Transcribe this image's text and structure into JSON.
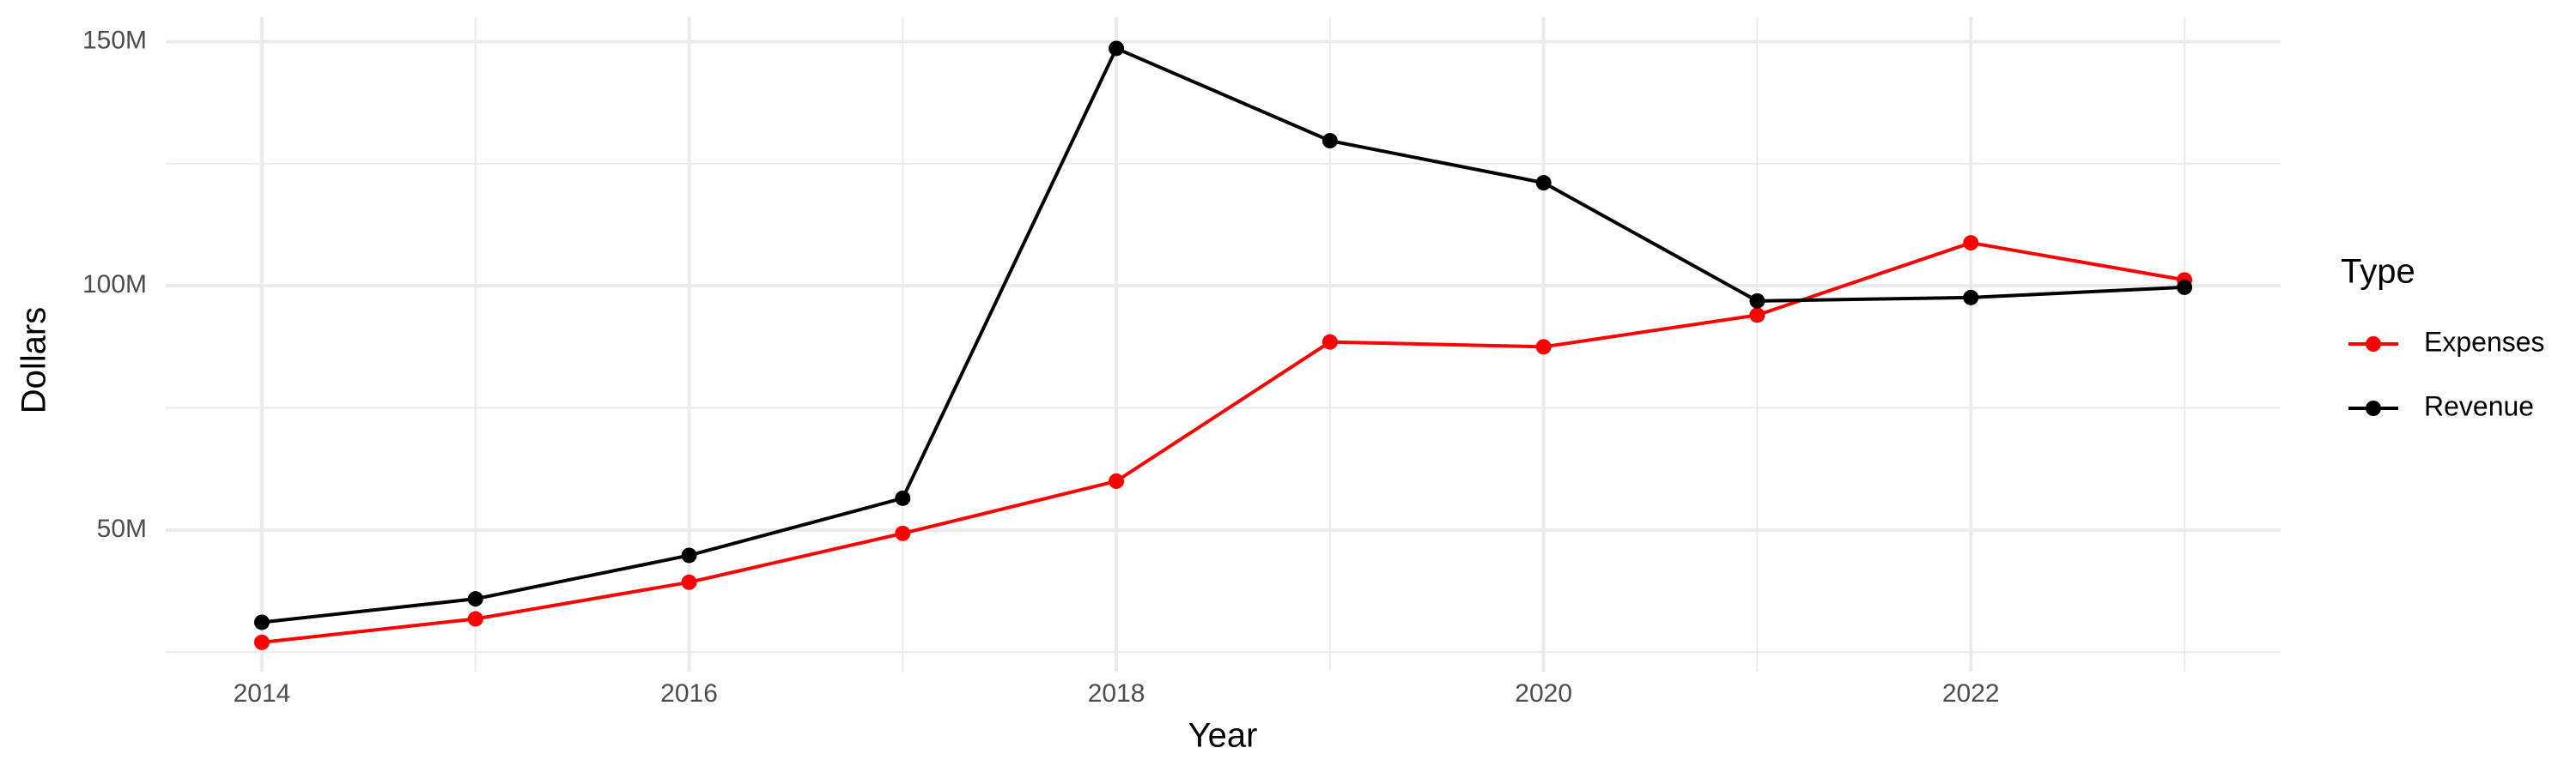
{
  "chart_data": {
    "type": "line",
    "x_label": "Year",
    "y_label": "Dollars",
    "legend_title": "Type",
    "x": [
      2014,
      2015,
      2016,
      2017,
      2018,
      2019,
      2020,
      2021,
      2022,
      2023
    ],
    "series": [
      {
        "name": "Expenses",
        "color": "#ff0000",
        "values": [
          27000000,
          31800000,
          39300000,
          49300000,
          60000000,
          88500000,
          87500000,
          94000000,
          108800000,
          101200000
        ]
      },
      {
        "name": "Revenue",
        "color": "#000000",
        "values": [
          31100000,
          35900000,
          44800000,
          56500000,
          148600000,
          129700000,
          121100000,
          96900000,
          97600000,
          99700000
        ]
      }
    ],
    "xlim": [
      2013.55,
      2023.45
    ],
    "ylim": [
      21000000,
      155000000
    ],
    "xticks": [
      2014,
      2016,
      2018,
      2020,
      2022
    ],
    "yticks": [
      {
        "value": 50000000,
        "label": "50M"
      },
      {
        "value": 100000000,
        "label": "100M"
      },
      {
        "value": 150000000,
        "label": "150M"
      }
    ],
    "x_minor_ticks": [
      2015,
      2017,
      2019,
      2021,
      2023
    ],
    "y_minor_ticks": [
      25000000,
      75000000,
      125000000
    ],
    "grid": true,
    "legend_position": "right"
  }
}
